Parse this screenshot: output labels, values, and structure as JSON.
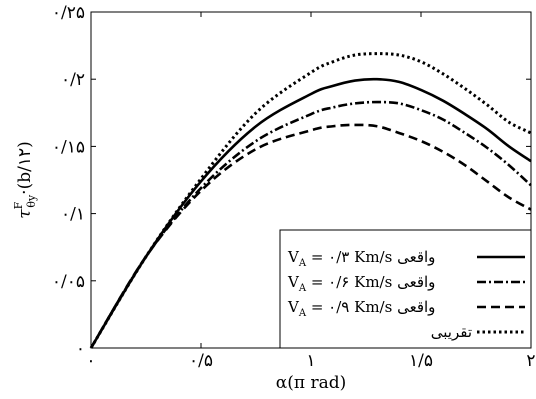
{
  "chart_data": {
    "type": "line",
    "xlabel": "α(π rad)",
    "ylabel": "τ^F_θy·(b/۱۲)",
    "xlim": [
      0,
      2
    ],
    "ylim": [
      0,
      0.25
    ],
    "xticks": [
      0,
      0.5,
      1,
      1.5,
      2
    ],
    "xtick_labels": [
      "۰",
      "۰/۵",
      "۱",
      "۱/۵",
      "۲"
    ],
    "yticks": [
      0,
      0.05,
      0.1,
      0.15,
      0.2,
      0.25
    ],
    "ytick_labels": [
      "۰",
      "۰/۰۵",
      "۰/۱",
      "۰/۱۵",
      "۰/۲",
      "۰/۲۵"
    ],
    "grid": false,
    "legend_position": "bottom-right",
    "x": [
      0,
      0.25,
      0.5,
      0.75,
      1.0,
      1.1,
      1.2,
      1.3,
      1.4,
      1.5,
      1.6,
      1.7,
      1.8,
      1.9,
      2.0
    ],
    "series": [
      {
        "name": "V_A = ۰/۳ Km/s واقعی",
        "style": "solid",
        "color": "#000000",
        "values": [
          0,
          0.068,
          0.124,
          0.165,
          0.189,
          0.195,
          0.199,
          0.2,
          0.198,
          0.192,
          0.184,
          0.174,
          0.163,
          0.15,
          0.139
        ]
      },
      {
        "name": "V_A = ۰/۶ Km/s واقعی",
        "style": "dashdot",
        "color": "#000000",
        "values": [
          0,
          0.068,
          0.119,
          0.154,
          0.174,
          0.179,
          0.182,
          0.183,
          0.182,
          0.177,
          0.17,
          0.16,
          0.149,
          0.136,
          0.121
        ]
      },
      {
        "name": "V_A = ۰/۹ Km/s واقعی",
        "style": "dashed",
        "color": "#000000",
        "values": [
          0,
          0.068,
          0.117,
          0.148,
          0.162,
          0.165,
          0.166,
          0.165,
          0.16,
          0.154,
          0.146,
          0.136,
          0.124,
          0.112,
          0.103
        ]
      },
      {
        "name": "تقریبی",
        "style": "dotted",
        "color": "#000000",
        "values": [
          0,
          0.068,
          0.126,
          0.175,
          0.205,
          0.213,
          0.218,
          0.219,
          0.218,
          0.213,
          0.204,
          0.193,
          0.181,
          0.168,
          0.16
        ]
      }
    ]
  }
}
